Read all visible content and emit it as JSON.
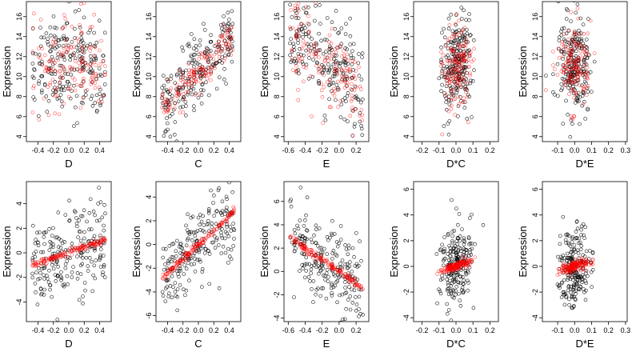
{
  "colors": {
    "observed": "#000000",
    "fitted": "#ff0000"
  },
  "chart_data": [
    {
      "type": "scatter",
      "xlabel": "D",
      "ylabel": "Expression",
      "xlim": [
        -0.55,
        0.55
      ],
      "ylim": [
        3.5,
        17.5
      ],
      "xticks": [
        -0.4,
        -0.2,
        0.0,
        0.2,
        0.4
      ],
      "yticks": [
        4,
        6,
        8,
        10,
        12,
        14,
        16
      ],
      "xtick_labels": [
        "-0.4",
        "-0.2",
        "0.0",
        "0.2",
        "0.4"
      ],
      "ytick_labels": [
        "4",
        "6",
        "8",
        "10",
        "12",
        "14",
        "16"
      ],
      "obs_trend": [
        11,
        0
      ],
      "obs_sd": 2.6,
      "fit_trend": [
        11,
        0
      ],
      "fit_sd": 2.3
    },
    {
      "type": "scatter",
      "xlabel": "C",
      "ylabel": "Expression",
      "xlim": [
        -0.55,
        0.55
      ],
      "ylim": [
        3.5,
        17.5
      ],
      "xticks": [
        -0.4,
        -0.2,
        0.0,
        0.2,
        0.4
      ],
      "yticks": [
        4,
        6,
        8,
        10,
        12,
        14,
        16
      ],
      "xtick_labels": [
        "-0.4",
        "-0.2",
        "0.0",
        "0.2",
        "0.4"
      ],
      "ytick_labels": [
        "4",
        "6",
        "8",
        "10",
        "12",
        "14",
        "16"
      ],
      "obs_trend": [
        10.5,
        7.5
      ],
      "obs_sd": 1.9,
      "fit_trend": [
        10.5,
        7.5
      ],
      "fit_sd": 0.9
    },
    {
      "type": "scatter",
      "xlabel": "E",
      "ylabel": "Expression",
      "xlim": [
        -0.65,
        0.35
      ],
      "ylim": [
        3.5,
        17.5
      ],
      "xticks": [
        -0.6,
        -0.4,
        -0.2,
        0.0,
        0.2
      ],
      "yticks": [
        4,
        6,
        8,
        10,
        12,
        14,
        16
      ],
      "xtick_labels": [
        "-0.6",
        "-0.4",
        "-0.2",
        "0.0",
        "0.2"
      ],
      "ytick_labels": [
        "4",
        "6",
        "8",
        "10",
        "12",
        "14",
        "16"
      ],
      "obs_trend": [
        10.5,
        -6
      ],
      "obs_sd": 2.6,
      "fit_trend": [
        10.5,
        -6
      ],
      "fit_sd": 2.2
    },
    {
      "type": "scatter",
      "xlabel": "D*C",
      "ylabel": "Expression",
      "xlim": [
        -0.25,
        0.25
      ],
      "ylim": [
        3.5,
        17.5
      ],
      "xticks": [
        -0.2,
        -0.1,
        0.0,
        0.1,
        0.2
      ],
      "yticks": [
        4,
        6,
        8,
        10,
        12,
        14,
        16
      ],
      "xtick_labels": [
        "-0.2",
        "-0.1",
        "0.0",
        "0.1",
        "0.2"
      ],
      "ytick_labels": [
        "4",
        "6",
        "8",
        "10",
        "12",
        "14",
        "16"
      ],
      "obs_trend": [
        11,
        6
      ],
      "obs_sd": 2.5,
      "fit_trend": [
        11,
        6
      ],
      "fit_sd": 2.0
    },
    {
      "type": "scatter",
      "xlabel": "D*E",
      "ylabel": "Expression",
      "xlim": [
        -0.19,
        0.31
      ],
      "ylim": [
        3.5,
        17.5
      ],
      "xticks": [
        -0.1,
        0.0,
        0.1,
        0.2,
        0.3
      ],
      "yticks": [
        4,
        6,
        8,
        10,
        12,
        14,
        16
      ],
      "xtick_labels": [
        "-0.1",
        "0.0",
        "0.1",
        "0.2",
        "0.3"
      ],
      "ytick_labels": [
        "4",
        "6",
        "8",
        "10",
        "12",
        "14",
        "16"
      ],
      "obs_trend": [
        11,
        0
      ],
      "obs_sd": 2.4,
      "fit_trend": [
        11,
        0
      ],
      "fit_sd": 2.0
    },
    {
      "type": "scatter",
      "xlabel": "D",
      "ylabel": "Expression",
      "xlim": [
        -0.55,
        0.55
      ],
      "ylim": [
        -5.6,
        5.8
      ],
      "xticks": [
        -0.4,
        -0.2,
        0.0,
        0.2,
        0.4
      ],
      "yticks": [
        -4,
        -2,
        0,
        2,
        4
      ],
      "xtick_labels": [
        "-0.4",
        "-0.2",
        "0.0",
        "0.2",
        "0.4"
      ],
      "ytick_labels": [
        "-4",
        "-2",
        "0",
        "2",
        "4"
      ],
      "obs_trend": [
        0,
        2.2
      ],
      "obs_sd": 1.7,
      "fit_trend": [
        0,
        2.2
      ],
      "fit_sd": 0.12
    },
    {
      "type": "scatter",
      "xlabel": "C",
      "ylabel": "Expression",
      "xlim": [
        -0.55,
        0.55
      ],
      "ylim": [
        -6.5,
        5.3
      ],
      "xticks": [
        -0.4,
        -0.2,
        0.0,
        0.2,
        0.4
      ],
      "yticks": [
        -6,
        -4,
        -2,
        0,
        2,
        4
      ],
      "xtick_labels": [
        "-0.4",
        "-0.2",
        "0.0",
        "0.2",
        "0.4"
      ],
      "ytick_labels": [
        "-6",
        "-4",
        "-2",
        "0",
        "2",
        "4"
      ],
      "obs_trend": [
        0,
        6
      ],
      "obs_sd": 1.6,
      "fit_trend": [
        0,
        6
      ],
      "fit_sd": 0.15
    },
    {
      "type": "scatter",
      "xlabel": "E",
      "ylabel": "Expression",
      "xlim": [
        -0.65,
        0.35
      ],
      "ylim": [
        -4.3,
        7.7
      ],
      "xticks": [
        -0.6,
        -0.4,
        -0.2,
        0.0,
        0.2
      ],
      "yticks": [
        -4,
        -2,
        0,
        2,
        4,
        6
      ],
      "xtick_labels": [
        "-0.6",
        "-0.4",
        "-0.2",
        "0.0",
        "0.2"
      ],
      "ytick_labels": [
        "-4",
        "-2",
        "0",
        "2",
        "4",
        "6"
      ],
      "obs_trend": [
        0,
        -5
      ],
      "obs_sd": 1.8,
      "fit_trend": [
        0,
        -5
      ],
      "fit_sd": 0.15
    },
    {
      "type": "scatter",
      "xlabel": "D*C",
      "ylabel": "Expression",
      "xlim": [
        -0.25,
        0.25
      ],
      "ylim": [
        -4.3,
        6.6
      ],
      "xticks": [
        -0.2,
        -0.1,
        0.0,
        0.1,
        0.2
      ],
      "yticks": [
        -4,
        -2,
        0,
        2,
        4,
        6
      ],
      "xtick_labels": [
        "-0.2",
        "-0.1",
        "0.0",
        "0.1",
        "0.2"
      ],
      "ytick_labels": [
        "-4",
        "-2",
        "0",
        "2",
        "4",
        "6"
      ],
      "obs_trend": [
        0,
        4.5
      ],
      "obs_sd": 1.6,
      "fit_trend": [
        0,
        4.5
      ],
      "fit_sd": 0.15
    },
    {
      "type": "scatter",
      "xlabel": "D*E",
      "ylabel": "Expression",
      "xlim": [
        -0.19,
        0.31
      ],
      "ylim": [
        -4.3,
        6.6
      ],
      "xticks": [
        -0.1,
        0.0,
        0.1,
        0.2,
        0.3
      ],
      "yticks": [
        -4,
        -2,
        0,
        2,
        4,
        6
      ],
      "xtick_labels": [
        "-0.1",
        "0.0",
        "0.1",
        "0.2",
        "0.3"
      ],
      "ytick_labels": [
        "-4",
        "-2",
        "0",
        "2",
        "4",
        "6"
      ],
      "obs_trend": [
        0,
        4
      ],
      "obs_sd": 1.6,
      "fit_trend": [
        0,
        4
      ],
      "fit_sd": 0.2
    }
  ]
}
